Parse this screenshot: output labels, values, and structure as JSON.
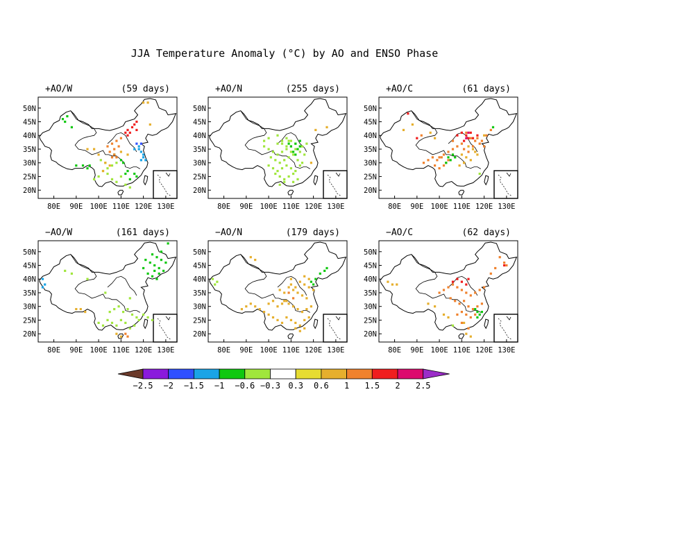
{
  "title": "JJA Temperature Anomaly (°C) by AO and ENSO Phase",
  "panels": [
    {
      "label": "+AO/W",
      "days": "(59 days)"
    },
    {
      "label": "+AO/N",
      "days": "(255 days)"
    },
    {
      "label": "+AO/C",
      "days": "(61 days)"
    },
    {
      "label": "−AO/W",
      "days": "(161 days)"
    },
    {
      "label": "−AO/N",
      "days": "(179 days)"
    },
    {
      "label": "−AO/C",
      "days": "(62 days)"
    }
  ],
  "lat_ticks": [
    "20N",
    "25N",
    "30N",
    "35N",
    "40N",
    "45N",
    "50N"
  ],
  "lon_ticks": [
    "80E",
    "90E",
    "100E",
    "110E",
    "120E",
    "130E"
  ],
  "map_extent": {
    "lon": [
      73,
      135
    ],
    "lat": [
      17,
      54
    ]
  },
  "colorbar": {
    "ticks": [
      "−2.5",
      "−2",
      "−1.5",
      "−1",
      "−0.6",
      "−0.3",
      "0.3",
      "0.6",
      "1",
      "1.5",
      "2",
      "2.5"
    ],
    "levels": [
      -2.5,
      -2,
      -1.5,
      -1,
      -0.6,
      -0.3,
      0.3,
      0.6,
      1,
      1.5,
      2,
      2.5
    ],
    "colors": [
      "#6b3a2a",
      "#8a1adc",
      "#2f50ff",
      "#1aa4e6",
      "#10c810",
      "#a0e63c",
      "#ffffff",
      "#e6dc32",
      "#e6af2d",
      "#f0822d",
      "#f01e1e",
      "#dc0a6e",
      "#9b2dc8"
    ]
  },
  "chart_data": {
    "type": "map-scatter",
    "value_units": "°C",
    "panels": [
      {
        "label": "+AO/W",
        "groups": [
          {
            "value": -0.8,
            "lon": [
              84,
              85,
              86,
              88,
              107,
              110,
              112,
              114,
              116,
              117,
              111,
              113,
              90,
              93,
              95,
              96
            ],
            "lat": [
              46,
              45,
              47,
              43,
              33,
              31,
              26,
              24,
              26,
              25,
              30,
              27,
              29,
              29,
              28,
              29
            ]
          },
          {
            "value": -0.45,
            "lon": [
              98,
              100,
              102,
              104,
              104,
              106,
              108,
              110,
              112,
              114,
              106,
              108,
              101,
              103
            ],
            "lat": [
              24,
              25,
              27,
              26,
              28,
              24,
              23,
              25,
              22,
              21,
              29,
              30,
              31,
              30
            ]
          },
          {
            "value": 1.2,
            "lon": [
              104,
              106,
              107,
              108,
              105,
              107,
              109,
              110,
              108,
              106
            ],
            "lat": [
              36,
              37,
              35,
              38,
              34,
              33,
              36,
              39,
              32,
              32
            ]
          },
          {
            "value": 0.8,
            "lon": [
              98,
              100,
              95,
              103,
              105,
              102,
              110,
              113,
              120,
              122,
              123
            ],
            "lat": [
              35,
              33,
              35,
              30,
              29,
              27,
              34,
              33,
              52,
              52,
              44
            ]
          },
          {
            "value": 1.8,
            "lon": [
              113,
              114,
              115,
              116,
              117,
              112,
              113,
              117
            ],
            "lat": [
              42,
              41,
              43,
              44,
              42,
              41,
              40,
              45
            ]
          },
          {
            "value": -1.3,
            "lon": [
              118,
              118,
              119,
              120,
              121,
              116,
              120,
              119
            ],
            "lat": [
              36,
              35,
              34,
              32,
              31,
              35,
              33,
              31
            ]
          },
          {
            "value": -1.8,
            "lon": [
              117,
              119
            ],
            "lat": [
              37,
              37
            ]
          }
        ]
      },
      {
        "label": "+AO/N",
        "groups": [
          {
            "value": -0.45,
            "lon": [
              98,
              100,
              102,
              104,
              106,
              108,
              110,
              112,
              114,
              116,
              101,
              103,
              105,
              107,
              109,
              111,
              113,
              115,
              100,
              102,
              104,
              106,
              108,
              110,
              112,
              114,
              103,
              105,
              107,
              109,
              111,
              98,
              100,
              104,
              109,
              115,
              117,
              106,
              108,
              110,
              112,
              114,
              105,
              107,
              111,
              113,
              104,
              106,
              108,
              110
            ],
            "lat": [
              36,
              35,
              34,
              33,
              34,
              35,
              36,
              35,
              34,
              33,
              32,
              31,
              30,
              31,
              32,
              33,
              31,
              30,
              29,
              28,
              27,
              28,
              29,
              28,
              27,
              29,
              26,
              25,
              24,
              25,
              26,
              38,
              39,
              40,
              38,
              36,
              37,
              37,
              39,
              38,
              37,
              36,
              22,
              23,
              23,
              24,
              37,
              38,
              36,
              34
            ]
          },
          {
            "value": -0.8,
            "lon": [
              110,
              111,
              112,
              113,
              114,
              112,
              114,
              109
            ],
            "lat": [
              36,
              34,
              37,
              35,
              36,
              33,
              38,
              37
            ]
          },
          {
            "value": 0.8,
            "lon": [
              126,
              121,
              119
            ],
            "lat": [
              43,
              42,
              30
            ]
          }
        ]
      },
      {
        "label": "+AO/C",
        "groups": [
          {
            "value": 1.2,
            "lon": [
              93,
              95,
              97,
              99,
              101,
              103,
              100,
              102,
              104,
              98,
              112,
              114,
              116,
              118,
              120,
              110,
              108,
              106,
              104,
              102,
              100,
              117,
              119,
              121,
              123,
              111,
              113,
              115,
              92,
              106
            ],
            "lat": [
              30,
              31,
              32,
              31,
              32,
              30,
              28,
              29,
              31,
              29,
              41,
              39,
              38,
              37,
              36,
              37,
              36,
              35,
              34,
              33,
              32,
              39,
              38,
              40,
              42,
              35,
              34,
              36,
              40,
              38
            ]
          },
          {
            "value": 0.8,
            "lon": [
              110,
              112,
              114,
              116,
              117,
              113,
              115,
              111,
              109,
              120,
              84,
              88,
              96,
              98
            ],
            "lat": [
              33,
              32,
              31,
              34,
              33,
              36,
              35,
              30,
              29,
              40,
              42,
              44,
              41,
              39
            ]
          },
          {
            "value": 1.8,
            "lon": [
              108,
              110,
              112,
              114,
              115,
              113,
              111,
              117,
              86,
              90
            ],
            "lat": [
              40,
              41,
              40,
              41,
              39,
              39,
              38,
              40,
              48,
              39
            ]
          },
          {
            "value": 2.2,
            "lon": [
              112,
              113
            ],
            "lat": [
              39,
              41
            ]
          },
          {
            "value": -0.8,
            "lon": [
              104,
              105,
              106,
              107,
              103,
              124
            ],
            "lat": [
              32,
              31,
              33,
              32,
              30,
              43
            ]
          },
          {
            "value": -0.45,
            "lon": [
              118
            ],
            "lat": [
              26
            ]
          }
        ]
      },
      {
        "label": "−AO/W",
        "groups": [
          {
            "value": -0.8,
            "lon": [
              124,
              126,
              128,
              130,
              125,
              127,
              129,
              122,
              124,
              126,
              123,
              125,
              127,
              120,
              121,
              128,
              131
            ],
            "lat": [
              49,
              48,
              47,
              46,
              45,
              44,
              43,
              42,
              41,
              40,
              46,
              43,
              42,
              44,
              47,
              50,
              53
            ]
          },
          {
            "value": -0.45,
            "lon": [
              100,
              102,
              104,
              106,
              108,
              110,
              112,
              114,
              116,
              118,
              105,
              107,
              109,
              111,
              113,
              115,
              117,
              120,
              122,
              124,
              85,
              88,
              95,
              103,
              114
            ],
            "lat": [
              24,
              23,
              25,
              24,
              23,
              25,
              24,
              22,
              23,
              25,
              28,
              29,
              30,
              28,
              29,
              27,
              26,
              27,
              26,
              25,
              43,
              42,
              40,
              35,
              33
            ]
          },
          {
            "value": 0.8,
            "lon": [
              90,
              92,
              94,
              108,
              110
            ],
            "lat": [
              29,
              29,
              28,
              20,
              19
            ]
          },
          {
            "value": 1.2,
            "lon": [
              112,
              113
            ],
            "lat": [
              20,
              19
            ]
          },
          {
            "value": -1.3,
            "lon": [
              75,
              76,
              75
            ],
            "lat": [
              40,
              38,
              37
            ]
          }
        ]
      },
      {
        "label": "−AO/N",
        "groups": [
          {
            "value": 0.8,
            "lon": [
              88,
              90,
              92,
              94,
              96,
              98,
              100,
              102,
              104,
              106,
              108,
              110,
              112,
              114,
              116,
              118,
              105,
              107,
              109,
              111,
              113,
              115,
              117,
              107,
              109,
              111,
              113,
              115,
              117,
              119,
              110,
              112,
              114,
              116,
              118,
              120,
              112,
              114,
              116,
              104,
              106,
              108,
              100,
              102,
              92,
              94,
              110,
              116,
              118
            ],
            "lat": [
              29,
              30,
              31,
              30,
              29,
              28,
              27,
              26,
              25,
              24,
              26,
              25,
              24,
              23,
              25,
              26,
              36,
              35,
              37,
              36,
              35,
              34,
              33,
              32,
              31,
              30,
              29,
              28,
              29,
              30,
              38,
              37,
              39,
              38,
              37,
              36,
              22,
              21,
              22,
              30,
              31,
              32,
              31,
              32,
              48,
              47,
              40,
              41,
              40
            ]
          },
          {
            "value": -0.8,
            "lon": [
              119,
              121,
              123,
              125,
              126,
              120
            ],
            "lat": [
              39,
              40,
              42,
              43,
              44,
              38
            ]
          },
          {
            "value": -0.45,
            "lon": [
              75,
              76,
              77
            ],
            "lat": [
              40,
              38,
              39
            ]
          },
          {
            "value": 1.2,
            "lon": [
              109,
              111
            ],
            "lat": [
              35,
              33
            ]
          }
        ]
      },
      {
        "label": "−AO/C",
        "groups": [
          {
            "value": 1.2,
            "lon": [
              100,
              102,
              104,
              106,
              108,
              110,
              112,
              114,
              116,
              118,
              120,
              105,
              107,
              109,
              111,
              113,
              115,
              117,
              119,
              110,
              112,
              114,
              116,
              127,
              129,
              130,
              125,
              123,
              108,
              110,
              113
            ],
            "lat": [
              35,
              36,
              37,
              38,
              37,
              36,
              35,
              34,
              35,
              36,
              37,
              33,
              32,
              31,
              32,
              30,
              29,
              30,
              31,
              28,
              27,
              26,
              27,
              48,
              46,
              45,
              44,
              42,
              27,
              24,
              22
            ]
          },
          {
            "value": 1.8,
            "lon": [
              106,
              108,
              110,
              112,
              129,
              113
            ],
            "lat": [
              39,
              40,
              39,
              38,
              45,
              40
            ]
          },
          {
            "value": 0.8,
            "lon": [
              77,
              79,
              81,
              95,
              98,
              102,
              104,
              112,
              114,
              111
            ],
            "lat": [
              39,
              38,
              38,
              31,
              30,
              27,
              26,
              20,
              19,
              24
            ]
          },
          {
            "value": -0.8,
            "lon": [
              117,
              118,
              119,
              117,
              116
            ],
            "lat": [
              28,
              27,
              28,
              26,
              29
            ]
          },
          {
            "value": -0.45,
            "lon": [
              106
            ],
            "lat": [
              23
            ]
          }
        ]
      }
    ]
  }
}
